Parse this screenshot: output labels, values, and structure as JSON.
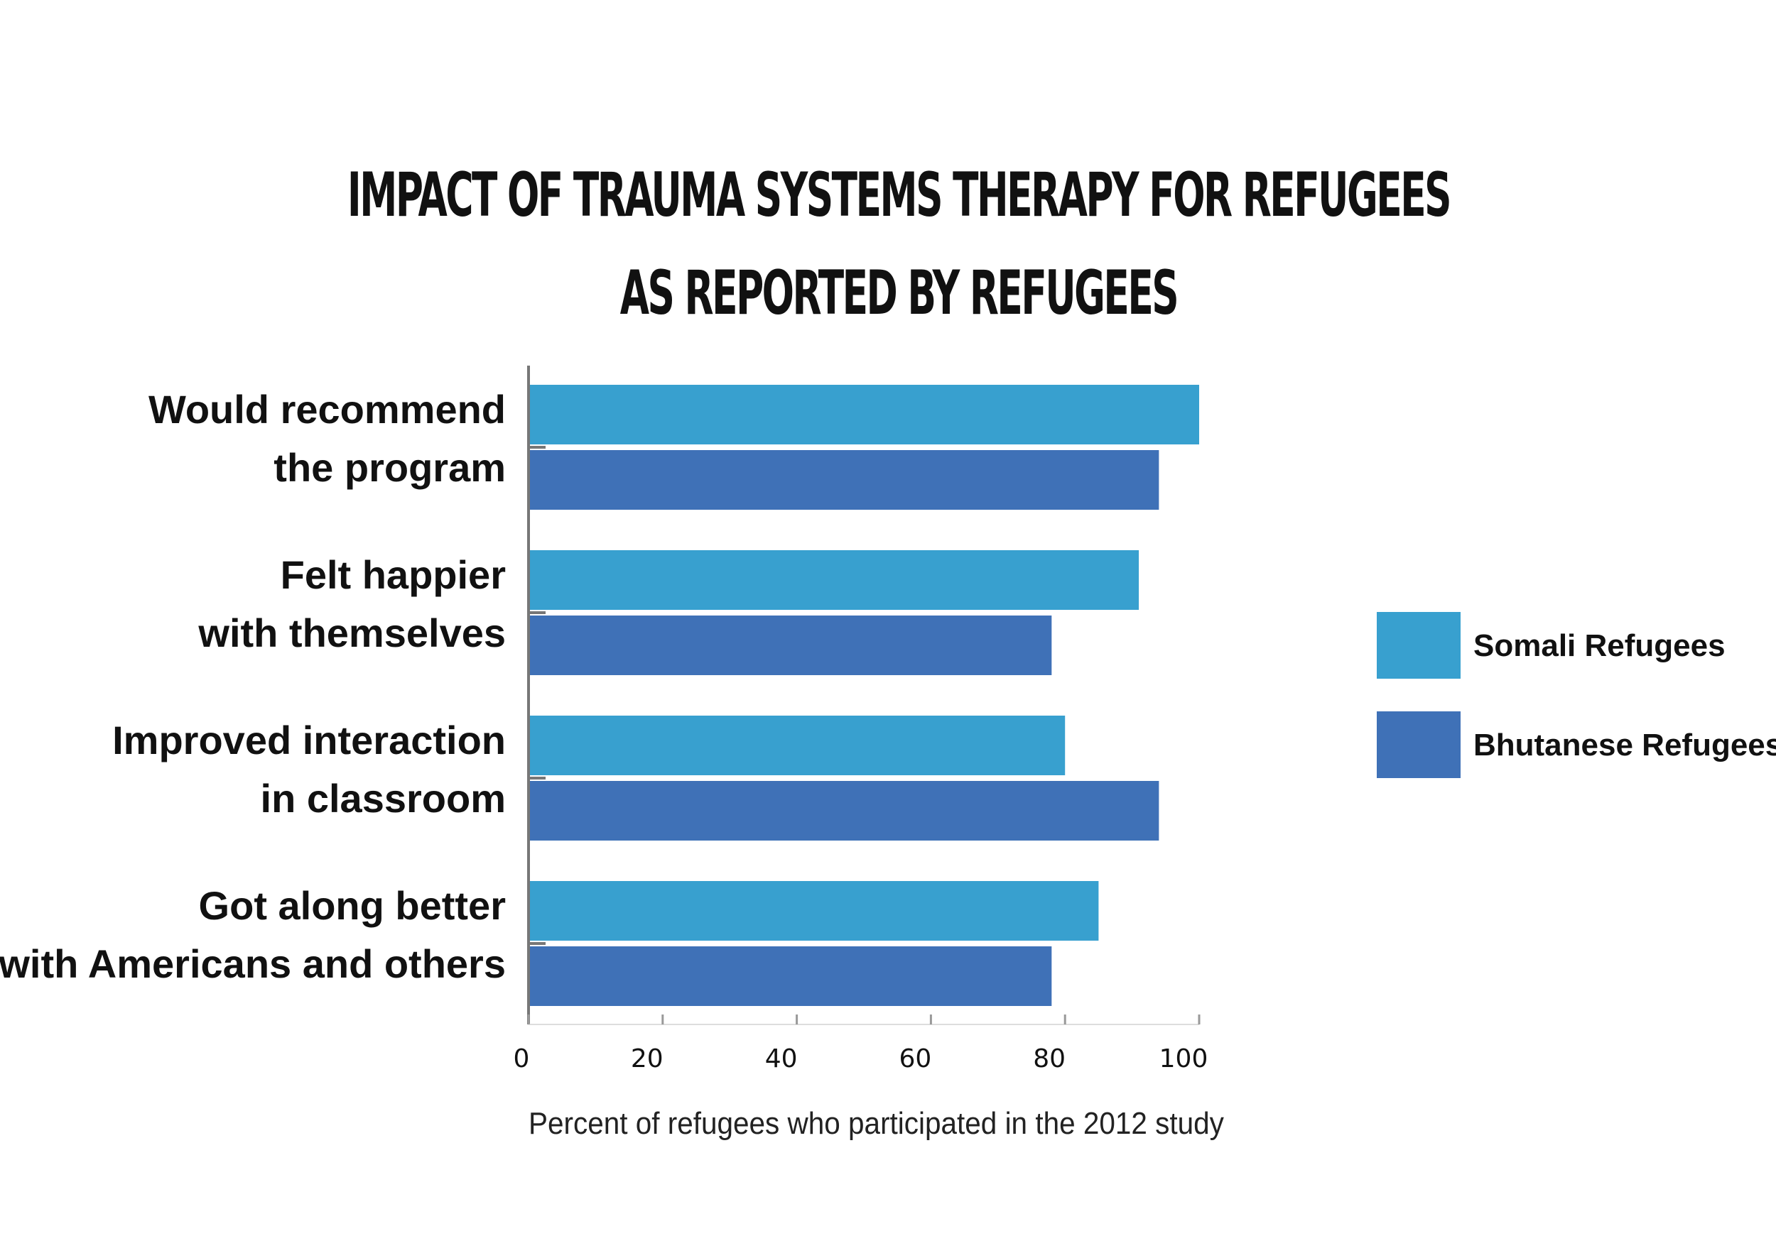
{
  "chart_data": {
    "type": "bar",
    "orientation": "horizontal",
    "title": [
      "IMPACT OF TRAUMA SYSTEMS THERAPY FOR REFUGEES",
      "AS REPORTED BY REFUGEES"
    ],
    "xlabel": "Percent of refugees who participated in the 2012 study",
    "ylabel": "",
    "xlim": [
      0,
      100
    ],
    "xticks": [
      0,
      20,
      40,
      60,
      80,
      100
    ],
    "categories": [
      [
        "Would recommend",
        "the program"
      ],
      [
        "Felt happier",
        "with themselves"
      ],
      [
        "Improved interaction",
        "in classroom"
      ],
      [
        "Got along better",
        "with Americans and others"
      ]
    ],
    "series": [
      {
        "name": "Somali Refugees",
        "color": "#38a0cf",
        "values": [
          100,
          91,
          80,
          85
        ]
      },
      {
        "name": "Bhutanese Refugees",
        "color": "#3f71b7",
        "values": [
          94,
          78,
          94,
          78
        ]
      }
    ],
    "grid": false,
    "legend_position": "right"
  }
}
